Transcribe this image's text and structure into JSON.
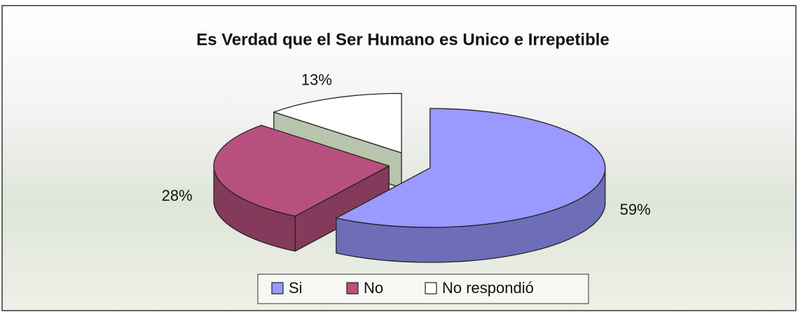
{
  "chart_data": {
    "type": "pie",
    "title": "Es Verdad que el Ser Humano es Unico e Irrepetible",
    "categories": [
      "Si",
      "No",
      "No respondió"
    ],
    "values": [
      59,
      28,
      13
    ],
    "value_labels": [
      "59%",
      "28%",
      "13%"
    ],
    "colors": [
      "#9999ff",
      "#b8507f",
      "#ffffff"
    ],
    "legend": "bottom"
  }
}
